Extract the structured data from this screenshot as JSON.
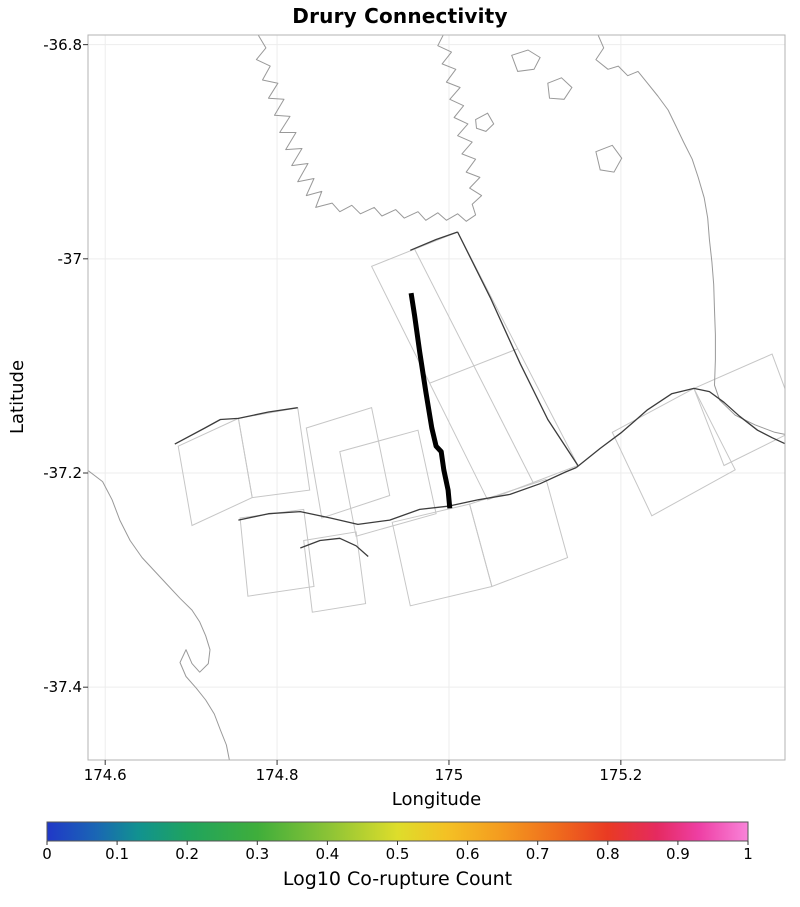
{
  "style": {
    "background": "#ffffff",
    "coast_color": "#999999",
    "patch_color": "#c6c6c6",
    "trace_color": "#3c3c3c",
    "highlight_color": "#000000",
    "grid_color": "#ededed",
    "frame_color": "#b3b3b3",
    "tick_color": "#333333",
    "text_color": "#000000"
  },
  "chart_data": {
    "type": "map",
    "title": "Drury Connectivity",
    "xlabel": "Longitude",
    "ylabel": "Latitude",
    "xlim": [
      174.58,
      175.391
    ],
    "ylim": [
      -37.468,
      -36.791
    ],
    "x_ticks": [
      174.6,
      174.8,
      175,
      175.2
    ],
    "x_tick_labels": [
      "174.6",
      "174.8",
      "175",
      "175.2"
    ],
    "y_ticks": [
      -36.8,
      -37,
      -37.2,
      -37.4
    ],
    "y_tick_labels": [
      "-36.8",
      "-37",
      "-37.2",
      "-37.4"
    ],
    "grid": true,
    "colorbar": {
      "label": "Log10 Co-rupture Count",
      "min": 0,
      "max": 1,
      "ticks": [
        "0",
        "0.1",
        "0.2",
        "0.3",
        "0.4",
        "0.5",
        "0.6",
        "0.7",
        "0.8",
        "0.9",
        "1"
      ],
      "stops": [
        {
          "at": 0.0,
          "color": "#2038c8"
        },
        {
          "at": 0.07,
          "color": "#1a66b4"
        },
        {
          "at": 0.13,
          "color": "#119290"
        },
        {
          "at": 0.2,
          "color": "#1fa35f"
        },
        {
          "at": 0.3,
          "color": "#3fae3b"
        },
        {
          "at": 0.4,
          "color": "#8ac336"
        },
        {
          "at": 0.5,
          "color": "#dedd2b"
        },
        {
          "at": 0.57,
          "color": "#f4c124"
        },
        {
          "at": 0.65,
          "color": "#f49a1f"
        },
        {
          "at": 0.73,
          "color": "#ef6a1d"
        },
        {
          "at": 0.8,
          "color": "#e93a23"
        },
        {
          "at": 0.87,
          "color": "#e52a60"
        },
        {
          "at": 0.93,
          "color": "#ee3fa4"
        },
        {
          "at": 1.0,
          "color": "#f983d9"
        }
      ]
    },
    "layers": {
      "coastlines": [
        [
          [
            174.778,
            -36.791
          ],
          [
            174.787,
            -36.803
          ],
          [
            174.776,
            -36.814
          ],
          [
            174.792,
            -36.82
          ],
          [
            174.783,
            -36.833
          ],
          [
            174.801,
            -36.836
          ],
          [
            174.79,
            -36.85
          ],
          [
            174.808,
            -36.851
          ],
          [
            174.797,
            -36.866
          ],
          [
            174.815,
            -36.867
          ],
          [
            174.803,
            -36.882
          ],
          [
            174.822,
            -36.882
          ],
          [
            174.81,
            -36.898
          ],
          [
            174.829,
            -36.897
          ],
          [
            174.817,
            -36.913
          ],
          [
            174.836,
            -36.911
          ],
          [
            174.824,
            -36.928
          ],
          [
            174.843,
            -36.925
          ],
          [
            174.834,
            -36.941
          ],
          [
            174.852,
            -36.937
          ],
          [
            174.845,
            -36.952
          ],
          [
            174.864,
            -36.948
          ],
          [
            174.873,
            -36.956
          ],
          [
            174.887,
            -36.95
          ],
          [
            174.897,
            -36.958
          ],
          [
            174.913,
            -36.952
          ],
          [
            174.922,
            -36.96
          ],
          [
            174.938,
            -36.954
          ],
          [
            174.948,
            -36.962
          ],
          [
            174.964,
            -36.956
          ],
          [
            174.973,
            -36.964
          ],
          [
            174.987,
            -36.957
          ],
          [
            174.997,
            -36.964
          ],
          [
            175.01,
            -36.958
          ],
          [
            175.02,
            -36.965
          ],
          [
            175.031,
            -36.959
          ],
          [
            175.027,
            -36.949
          ],
          [
            175.038,
            -36.941
          ],
          [
            175.024,
            -36.934
          ],
          [
            175.036,
            -36.924
          ],
          [
            175.02,
            -36.919
          ],
          [
            175.031,
            -36.907
          ],
          [
            175.015,
            -36.902
          ],
          [
            175.027,
            -36.891
          ],
          [
            175.01,
            -36.885
          ],
          [
            175.022,
            -36.874
          ],
          [
            175.006,
            -36.868
          ],
          [
            175.017,
            -36.857
          ],
          [
            175.001,
            -36.851
          ],
          [
            175.013,
            -36.84
          ],
          [
            174.997,
            -36.835
          ],
          [
            175.008,
            -36.823
          ],
          [
            174.992,
            -36.818
          ],
          [
            175.003,
            -36.807
          ],
          [
            174.987,
            -36.801
          ],
          [
            174.994,
            -36.79
          ]
        ],
        [
          [
            175.173,
            -36.79
          ],
          [
            175.18,
            -36.803
          ],
          [
            175.171,
            -36.814
          ],
          [
            175.185,
            -36.823
          ],
          [
            175.197,
            -36.82
          ],
          [
            175.208,
            -36.829
          ],
          [
            175.22,
            -36.825
          ],
          [
            175.231,
            -36.836
          ],
          [
            175.243,
            -36.848
          ],
          [
            175.255,
            -36.861
          ],
          [
            175.264,
            -36.876
          ],
          [
            175.273,
            -36.891
          ],
          [
            175.283,
            -36.907
          ],
          [
            175.29,
            -36.924
          ],
          [
            175.297,
            -36.943
          ],
          [
            175.301,
            -36.962
          ],
          [
            175.303,
            -36.982
          ],
          [
            175.306,
            -37.003
          ],
          [
            175.308,
            -37.024
          ],
          [
            175.309,
            -37.048
          ],
          [
            175.31,
            -37.071
          ],
          [
            175.31,
            -37.094
          ],
          [
            175.309,
            -37.118
          ],
          [
            175.315,
            -37.132
          ],
          [
            175.333,
            -37.146
          ],
          [
            175.356,
            -37.155
          ],
          [
            175.379,
            -37.162
          ],
          [
            175.398,
            -37.165
          ]
        ],
        [
          [
            174.579,
            -37.197
          ],
          [
            174.597,
            -37.208
          ],
          [
            174.608,
            -37.225
          ],
          [
            174.617,
            -37.244
          ],
          [
            174.629,
            -37.263
          ],
          [
            174.643,
            -37.279
          ],
          [
            174.658,
            -37.292
          ],
          [
            174.673,
            -37.305
          ],
          [
            174.687,
            -37.317
          ],
          [
            174.701,
            -37.328
          ],
          [
            174.71,
            -37.339
          ],
          [
            174.717,
            -37.352
          ],
          [
            174.722,
            -37.365
          ],
          [
            174.72,
            -37.378
          ],
          [
            174.71,
            -37.386
          ],
          [
            174.701,
            -37.378
          ],
          [
            174.694,
            -37.365
          ],
          [
            174.687,
            -37.377
          ],
          [
            174.694,
            -37.39
          ],
          [
            174.706,
            -37.401
          ],
          [
            174.717,
            -37.412
          ],
          [
            174.727,
            -37.425
          ],
          [
            174.734,
            -37.44
          ],
          [
            174.741,
            -37.454
          ],
          [
            174.745,
            -37.47
          ]
        ]
      ],
      "islands": [
        [
          [
            175.073,
            -36.81
          ],
          [
            175.092,
            -36.805
          ],
          [
            175.106,
            -36.812
          ],
          [
            175.099,
            -36.823
          ],
          [
            175.08,
            -36.825
          ]
        ],
        [
          [
            175.115,
            -36.836
          ],
          [
            175.131,
            -36.831
          ],
          [
            175.143,
            -36.84
          ],
          [
            175.134,
            -36.851
          ],
          [
            175.117,
            -36.85
          ]
        ],
        [
          [
            175.171,
            -36.9
          ],
          [
            175.19,
            -36.894
          ],
          [
            175.201,
            -36.906
          ],
          [
            175.192,
            -36.919
          ],
          [
            175.176,
            -36.917
          ]
        ],
        [
          [
            175.031,
            -36.87
          ],
          [
            175.045,
            -36.864
          ],
          [
            175.052,
            -36.874
          ],
          [
            175.043,
            -36.881
          ],
          [
            175.032,
            -36.878
          ]
        ]
      ],
      "fault_patches": [
        [
          [
            174.685,
            -37.175
          ],
          [
            174.755,
            -37.149
          ],
          [
            174.771,
            -37.223
          ],
          [
            174.701,
            -37.249
          ]
        ],
        [
          [
            174.755,
            -37.149
          ],
          [
            174.824,
            -37.139
          ],
          [
            174.838,
            -37.216
          ],
          [
            174.771,
            -37.223
          ]
        ],
        [
          [
            174.834,
            -37.158
          ],
          [
            174.91,
            -37.139
          ],
          [
            174.931,
            -37.221
          ],
          [
            174.852,
            -37.242
          ]
        ],
        [
          [
            174.873,
            -37.18
          ],
          [
            174.964,
            -37.16
          ],
          [
            174.985,
            -37.238
          ],
          [
            174.892,
            -37.259
          ]
        ],
        [
          [
            174.91,
            -37.007
          ],
          [
            175.01,
            -36.975
          ],
          [
            175.15,
            -37.193
          ],
          [
            175.045,
            -37.225
          ]
        ],
        [
          [
            174.934,
            -37.246
          ],
          [
            175.024,
            -37.229
          ],
          [
            175.05,
            -37.306
          ],
          [
            174.955,
            -37.324
          ]
        ],
        [
          [
            175.024,
            -37.229
          ],
          [
            175.113,
            -37.206
          ],
          [
            175.138,
            -37.279
          ],
          [
            175.05,
            -37.306
          ]
        ],
        [
          [
            174.757,
            -37.242
          ],
          [
            174.831,
            -37.234
          ],
          [
            174.843,
            -37.306
          ],
          [
            174.766,
            -37.315
          ]
        ],
        [
          [
            174.831,
            -37.263
          ],
          [
            174.892,
            -37.255
          ],
          [
            174.903,
            -37.322
          ],
          [
            174.841,
            -37.33
          ]
        ],
        [
          [
            175.19,
            -37.162
          ],
          [
            175.285,
            -37.121
          ],
          [
            175.333,
            -37.197
          ],
          [
            175.236,
            -37.24
          ]
        ],
        [
          [
            175.285,
            -37.121
          ],
          [
            175.376,
            -37.089
          ],
          [
            175.408,
            -37.158
          ],
          [
            175.32,
            -37.193
          ]
        ]
      ],
      "fault_inner_lines": [
        [
          [
            174.96,
            -36.991
          ],
          [
            175.098,
            -37.209
          ]
        ],
        [
          [
            174.978,
            -37.116
          ],
          [
            175.08,
            -37.084
          ]
        ]
      ],
      "fault_traces": [
        [
          [
            174.681,
            -37.173
          ],
          [
            174.716,
            -37.158
          ],
          [
            174.734,
            -37.15
          ],
          [
            174.755,
            -37.149
          ],
          [
            174.79,
            -37.143
          ],
          [
            174.824,
            -37.139
          ]
        ],
        [
          [
            174.755,
            -37.244
          ],
          [
            174.79,
            -37.238
          ],
          [
            174.827,
            -37.236
          ],
          [
            174.862,
            -37.242
          ],
          [
            174.894,
            -37.248
          ],
          [
            174.931,
            -37.244
          ],
          [
            174.966,
            -37.234
          ],
          [
            174.999,
            -37.231
          ]
        ],
        [
          [
            174.999,
            -37.231
          ],
          [
            175.034,
            -37.225
          ],
          [
            175.071,
            -37.22
          ],
          [
            175.106,
            -37.21
          ],
          [
            175.136,
            -37.199
          ],
          [
            175.148,
            -37.195
          ]
        ],
        [
          [
            175.148,
            -37.195
          ],
          [
            175.176,
            -37.177
          ],
          [
            175.201,
            -37.162
          ],
          [
            175.231,
            -37.141
          ],
          [
            175.259,
            -37.126
          ],
          [
            175.285,
            -37.121
          ],
          [
            175.303,
            -37.124
          ],
          [
            175.32,
            -37.134
          ],
          [
            175.338,
            -37.147
          ],
          [
            175.359,
            -37.16
          ],
          [
            175.376,
            -37.167
          ],
          [
            175.392,
            -37.173
          ]
        ],
        [
          [
            174.827,
            -37.27
          ],
          [
            174.85,
            -37.263
          ],
          [
            174.873,
            -37.261
          ],
          [
            174.892,
            -37.268
          ],
          [
            174.906,
            -37.278
          ]
        ],
        [
          [
            175.01,
            -36.975
          ],
          [
            175.048,
            -37.036
          ],
          [
            175.083,
            -37.098
          ],
          [
            175.115,
            -37.15
          ],
          [
            175.15,
            -37.193
          ]
        ],
        [
          [
            174.955,
            -36.992
          ],
          [
            174.985,
            -36.982
          ],
          [
            175.01,
            -36.975
          ]
        ]
      ],
      "highlight_trace": [
        [
          [
            174.956,
            -37.032
          ],
          [
            174.96,
            -37.053
          ],
          [
            174.966,
            -37.087
          ],
          [
            174.973,
            -37.124
          ],
          [
            174.98,
            -37.158
          ],
          [
            174.985,
            -37.175
          ],
          [
            174.991,
            -37.18
          ],
          [
            174.994,
            -37.197
          ],
          [
            174.999,
            -37.216
          ],
          [
            175.001,
            -37.233
          ]
        ]
      ]
    }
  }
}
